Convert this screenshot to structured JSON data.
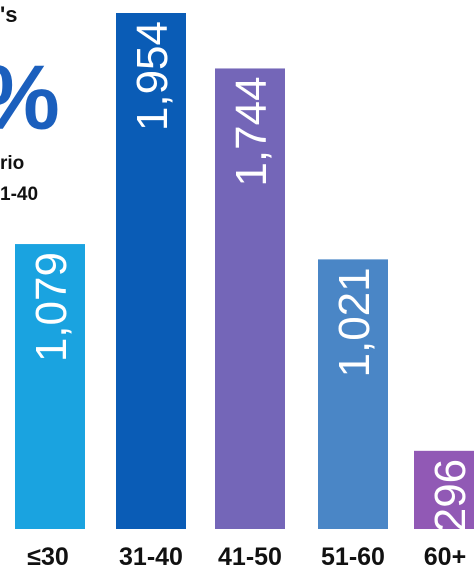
{
  "fragments": {
    "top": "'s",
    "big_glyph": "%",
    "line1": "rio",
    "line2": "1-40"
  },
  "chart_data": {
    "type": "bar",
    "categories": [
      "≤30",
      "31-40",
      "41-50",
      "51-60",
      "60+"
    ],
    "values": [
      1079,
      1954,
      1744,
      1021,
      296
    ],
    "value_labels": [
      "1,079",
      "1,954",
      "1,744",
      "1,021",
      "296"
    ],
    "colors": [
      "#1aa3e0",
      "#0a5cb6",
      "#7466b8",
      "#4a86c6",
      "#9159b5"
    ],
    "title": "",
    "xlabel": "",
    "ylabel": "",
    "ylim": [
      0,
      1954
    ],
    "grid": false
  }
}
